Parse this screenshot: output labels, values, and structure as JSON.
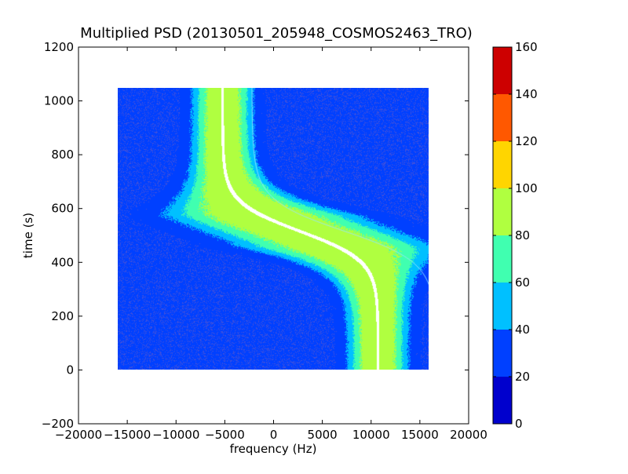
{
  "chart_data": {
    "type": "heatmap",
    "title": "Multiplied PSD (20130501_205948_COSMOS2463_TRO)",
    "xlabel": "frequency (Hz)",
    "ylabel": "time (s)",
    "xlim": [
      -20000,
      20000
    ],
    "ylim": [
      -200,
      1200
    ],
    "xticks": [
      -20000,
      -15000,
      -10000,
      -5000,
      0,
      5000,
      10000,
      15000,
      20000
    ],
    "yticks": [
      -200,
      0,
      200,
      400,
      600,
      800,
      1000,
      1200
    ],
    "xtick_labels": [
      "−20000",
      "−15000",
      "−10000",
      "−5000",
      "0",
      "5000",
      "10000",
      "15000",
      "20000"
    ],
    "ytick_labels": [
      "−200",
      "0",
      "200",
      "400",
      "600",
      "800",
      "1000",
      "1200"
    ],
    "data_extent": {
      "x": [
        -16000,
        16000
      ],
      "y": [
        0,
        1050
      ]
    },
    "background_level": 28,
    "track": {
      "description_points": [
        {
          "time": 1020,
          "frequency": -5000
        },
        {
          "time": 900,
          "frequency": -4700
        },
        {
          "time": 800,
          "frequency": -4000
        },
        {
          "time": 700,
          "frequency": -2700
        },
        {
          "time": 620,
          "frequency": -500
        },
        {
          "time": 560,
          "frequency": 2000
        },
        {
          "time": 500,
          "frequency": 5000
        },
        {
          "time": 440,
          "frequency": 7500
        },
        {
          "time": 370,
          "frequency": 9200
        },
        {
          "time": 300,
          "frequency": 10000
        },
        {
          "time": 200,
          "frequency": 10500
        },
        {
          "time": 100,
          "frequency": 10700
        },
        {
          "time": 0,
          "frequency": 10800
        }
      ],
      "center_frequency_1050": -5200,
      "center_frequency_0": 10800,
      "transition_time": 515,
      "peak_level": 100,
      "core_level": 85
    },
    "colorbar": {
      "vmin": 0,
      "vmax": 160,
      "ticks": [
        0,
        20,
        40,
        60,
        80,
        100,
        120,
        140,
        160
      ],
      "tick_labels": [
        "0",
        "20",
        "40",
        "60",
        "80",
        "100",
        "120",
        "140",
        "160"
      ],
      "colors": [
        "#0000cd",
        "#0040ff",
        "#00c0ff",
        "#40ffb0",
        "#b0ff40",
        "#ffd500",
        "#ff5800",
        "#cd0000"
      ]
    }
  }
}
